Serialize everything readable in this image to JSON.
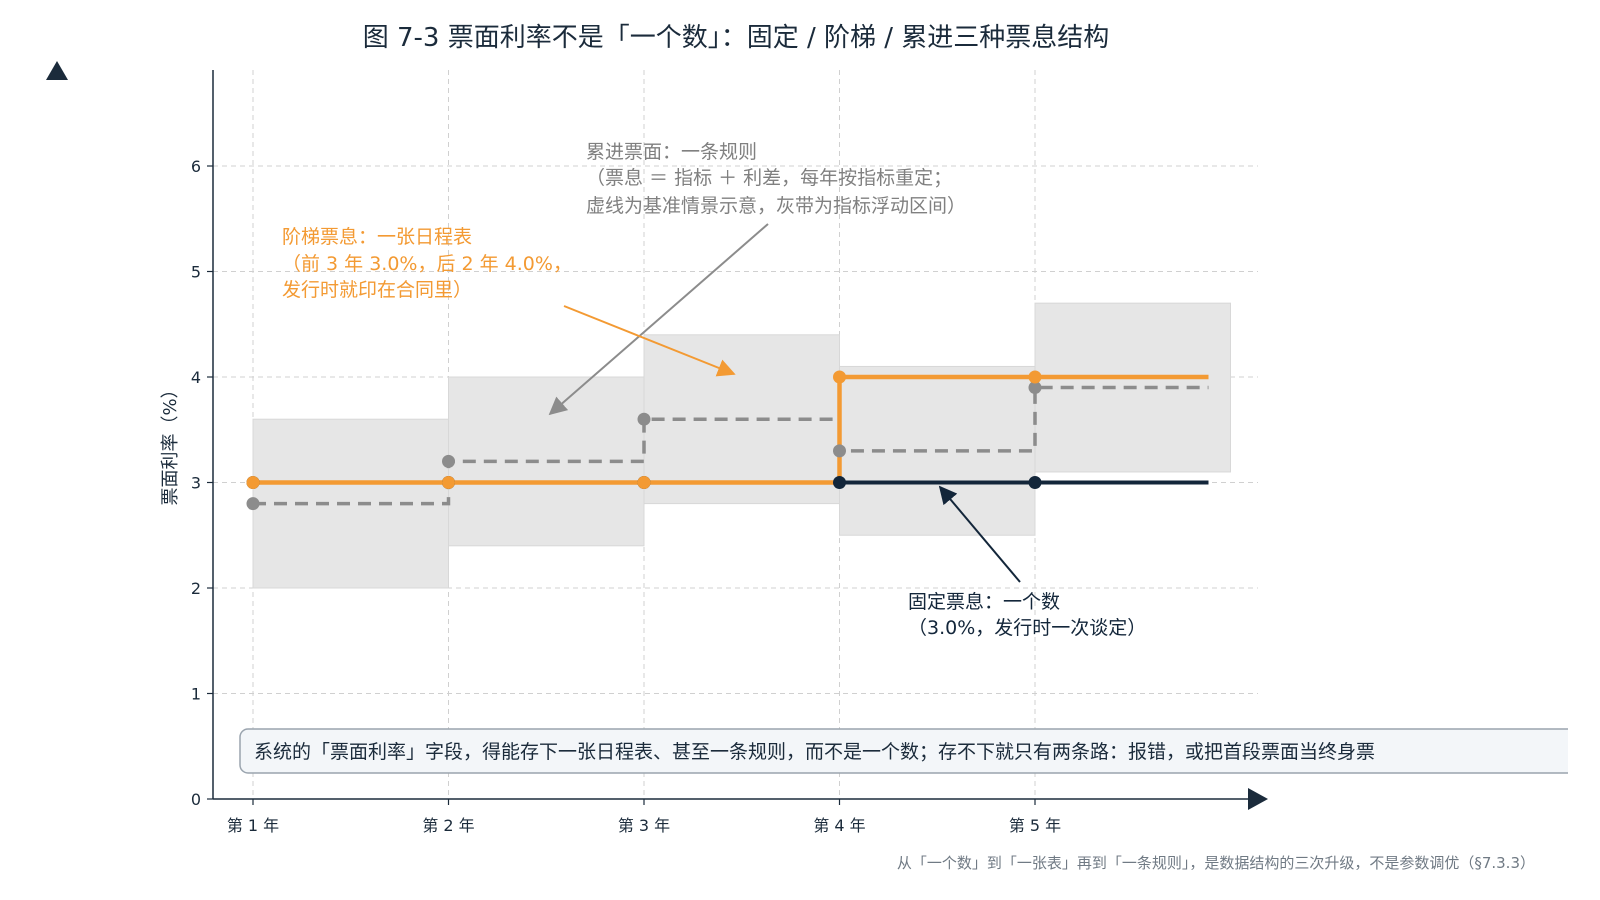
{
  "title": "图 7-3 票面利率不是「一个数」：固定 / 阶梯 / 累进三种票息结构",
  "footer": "从「一个数」到「一张表」再到「一条规则」，是数据结构的三次升级，不是参数调优（§7.3.3）",
  "note_box": "系统的「票面利率」字段，得能存下一张日程表、甚至一条规则，而不是一个数；存不下就只有两条路：报错，或把首段票面当终身票",
  "colors": {
    "fixed": "#13263a",
    "step": "#f39a33",
    "floating": "#8c8c8c",
    "band": "#e6e6e6",
    "grid": "#d0d0d0",
    "axis": "#1b2b3b"
  },
  "chart_data": {
    "type": "line",
    "title": "图 7-3 票面利率不是「一个数」：固定 / 阶梯 / 累进三种票息结构",
    "ylabel": "票面利率（%）",
    "xlabel": "",
    "categories": [
      "第 1 年",
      "第 2 年",
      "第 3 年",
      "第 4 年",
      "第 5 年"
    ],
    "x": [
      1,
      2,
      3,
      4,
      5
    ],
    "x_end": 6,
    "ylim": [
      0,
      7
    ],
    "yticks": [
      0,
      1,
      2,
      3,
      4,
      5,
      6
    ],
    "grid": true,
    "series": [
      {
        "key": "band",
        "kind": "band",
        "low": [
          2.0,
          2.4,
          2.8,
          2.5,
          3.1
        ],
        "high": [
          3.6,
          4.0,
          4.4,
          4.1,
          4.7
        ]
      },
      {
        "key": "floating",
        "kind": "step-dashed",
        "values": [
          2.8,
          3.2,
          3.6,
          3.3,
          3.9
        ]
      },
      {
        "key": "fixed",
        "kind": "step",
        "values": [
          3.0,
          3.0,
          3.0,
          3.0,
          3.0
        ]
      },
      {
        "key": "step",
        "kind": "step",
        "values": [
          3.0,
          3.0,
          3.0,
          4.0,
          4.0
        ]
      }
    ],
    "annotations": [
      {
        "key": "float",
        "lines": [
          "累进票面：一条规则",
          "（票息 ＝ 指标 ＋ 利差，每年按指标重定；",
          "虚线为基准情景示意，灰带为指标浮动区间）"
        ]
      },
      {
        "key": "step",
        "lines": [
          "阶梯票息：一张日程表",
          "（前 3 年 3.0%，后 2 年 4.0%，",
          "发行时就印在合同里）"
        ]
      },
      {
        "key": "fixed",
        "lines": [
          "固定票息：一个数",
          "（3.0%，发行时一次谈定）"
        ]
      }
    ]
  }
}
